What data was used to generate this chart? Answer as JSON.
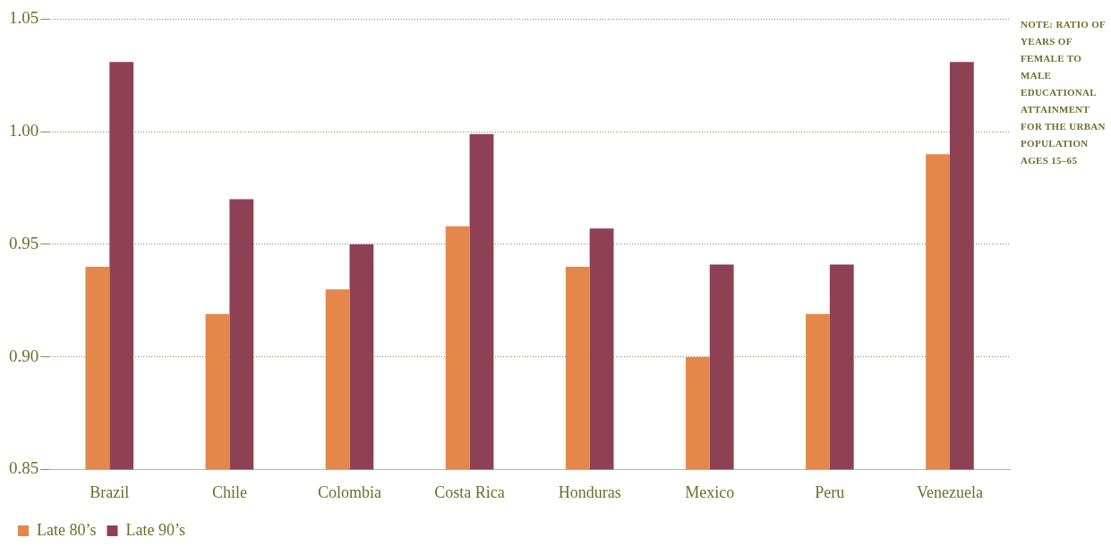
{
  "chart_data": {
    "type": "bar",
    "categories": [
      "Brazil",
      "Chile",
      "Colombia",
      "Costa Rica",
      "Honduras",
      "Mexico",
      "Peru",
      "Venezuela"
    ],
    "series": [
      {
        "name": "Late 80’s",
        "color": "#e4874a",
        "values": [
          0.94,
          0.919,
          0.93,
          0.958,
          0.94,
          0.9,
          0.919,
          0.99
        ]
      },
      {
        "name": "Late 90’s",
        "color": "#8e4155",
        "values": [
          1.031,
          0.97,
          0.95,
          0.999,
          0.957,
          0.941,
          0.941,
          1.031
        ]
      }
    ],
    "ylim": [
      0.85,
      1.05
    ],
    "yticks": [
      0.85,
      {
        "value": 0.9,
        "label": "0.90"
      },
      0.95,
      {
        "value": 1,
        "label": "1.00"
      },
      1.05
    ],
    "grid": "y",
    "legend": "bottom left",
    "annotations": [
      "NOTE: RATIO OF YEARS OF FEMALE TO MALE EDUCATIONAL ATTAINMENT FOR THE URBAN POPULATION AGES 15–65"
    ]
  }
}
